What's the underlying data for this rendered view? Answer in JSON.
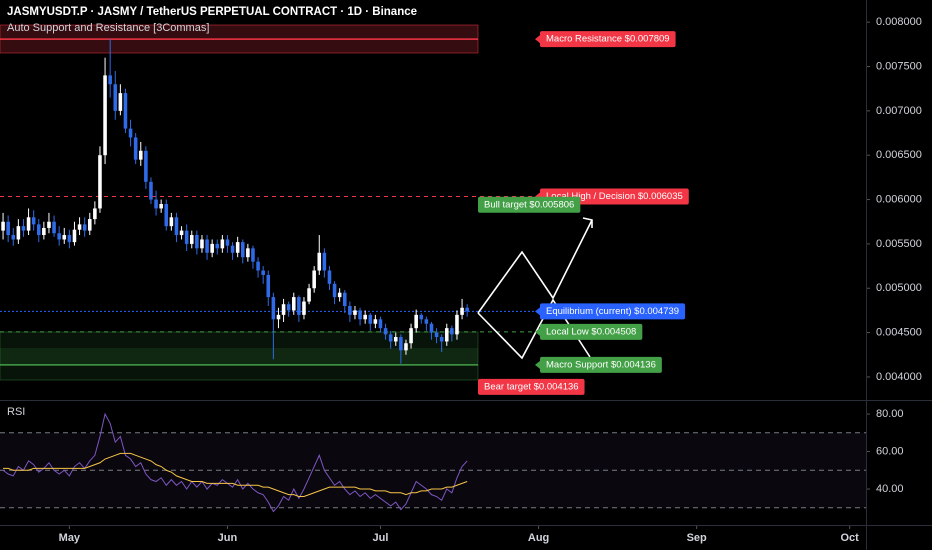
{
  "chart_data": [
    {
      "type": "candlestick",
      "title": "JASMYUSDT.P · JASMY / TetherUS PERPETUAL CONTRACT · 1D · Binance",
      "subtitle": "Auto Support and Resistance [3Commas]",
      "up_color": "#ffffff",
      "down_color": "#2f6be8",
      "x": [
        0,
        1,
        2,
        3,
        4,
        5,
        6,
        7,
        8,
        9,
        10,
        11,
        12,
        13,
        14,
        15,
        16,
        17,
        18,
        19,
        20,
        21,
        22,
        23,
        24,
        25,
        26,
        27,
        28,
        29,
        30,
        31,
        32,
        33,
        34,
        35,
        36,
        37,
        38,
        39,
        40,
        41,
        42,
        43,
        44,
        45,
        46,
        47,
        48,
        49,
        50,
        51,
        52,
        53,
        54,
        55,
        56,
        57,
        58,
        59,
        60,
        61,
        62,
        63,
        64,
        65,
        66,
        67,
        68,
        69,
        70,
        71,
        72,
        73,
        74,
        75,
        76,
        77,
        78,
        79,
        80,
        81,
        82,
        83,
        84,
        85,
        86,
        87,
        88,
        89,
        90,
        91
      ],
      "open": [
        0.00565,
        0.00575,
        0.0056,
        0.00555,
        0.0057,
        0.00565,
        0.0058,
        0.00572,
        0.0056,
        0.00568,
        0.00575,
        0.00562,
        0.00555,
        0.0056,
        0.00552,
        0.00566,
        0.00572,
        0.00565,
        0.00578,
        0.0059,
        0.0065,
        0.0074,
        0.0073,
        0.007,
        0.0072,
        0.0068,
        0.0067,
        0.00645,
        0.00655,
        0.0062,
        0.006,
        0.0059,
        0.00595,
        0.0057,
        0.0058,
        0.0056,
        0.00565,
        0.0055,
        0.0056,
        0.00545,
        0.00555,
        0.0054,
        0.0055,
        0.00545,
        0.00555,
        0.00548,
        0.0054,
        0.00552,
        0.00535,
        0.00545,
        0.0053,
        0.0052,
        0.00515,
        0.0049,
        0.00465,
        0.0047,
        0.00482,
        0.00475,
        0.0049,
        0.0047,
        0.00485,
        0.005,
        0.0052,
        0.0054,
        0.0052,
        0.00505,
        0.0049,
        0.00495,
        0.0048,
        0.0047,
        0.00475,
        0.00465,
        0.0047,
        0.0046,
        0.00465,
        0.00455,
        0.00448,
        0.0044,
        0.00445,
        0.0043,
        0.00438,
        0.00455,
        0.0047,
        0.00465,
        0.0046,
        0.0045,
        0.00445,
        0.0044,
        0.00455,
        0.00448,
        0.0047,
        0.00478
      ],
      "high": [
        0.00585,
        0.00582,
        0.00568,
        0.00578,
        0.00578,
        0.0059,
        0.00588,
        0.00578,
        0.00575,
        0.00585,
        0.00582,
        0.0057,
        0.00568,
        0.00566,
        0.00575,
        0.0058,
        0.0058,
        0.00585,
        0.00598,
        0.0066,
        0.0076,
        0.00781,
        0.00745,
        0.0073,
        0.00725,
        0.0069,
        0.00675,
        0.00665,
        0.0066,
        0.00625,
        0.0061,
        0.006,
        0.006,
        0.00585,
        0.00585,
        0.0057,
        0.00572,
        0.00565,
        0.00565,
        0.0056,
        0.0056,
        0.00555,
        0.00555,
        0.0056,
        0.0056,
        0.00552,
        0.00558,
        0.00555,
        0.0055,
        0.00548,
        0.00535,
        0.00525,
        0.0052,
        0.00495,
        0.00478,
        0.00488,
        0.00485,
        0.00495,
        0.00492,
        0.0049,
        0.00505,
        0.00525,
        0.0056,
        0.00545,
        0.00525,
        0.00508,
        0.005,
        0.00498,
        0.00485,
        0.0048,
        0.00478,
        0.00475,
        0.00472,
        0.0047,
        0.00468,
        0.0046,
        0.00452,
        0.0045,
        0.00448,
        0.00442,
        0.0046,
        0.00476,
        0.00472,
        0.00468,
        0.00462,
        0.00455,
        0.00448,
        0.0046,
        0.00458,
        0.00475,
        0.00488,
        0.00482
      ],
      "low": [
        0.00555,
        0.00552,
        0.00548,
        0.0055,
        0.00558,
        0.0056,
        0.00565,
        0.00552,
        0.00555,
        0.00562,
        0.00558,
        0.00548,
        0.0055,
        0.00545,
        0.00548,
        0.0056,
        0.00558,
        0.0056,
        0.00572,
        0.00585,
        0.0064,
        0.00715,
        0.0069,
        0.00695,
        0.00675,
        0.0066,
        0.0064,
        0.00638,
        0.00612,
        0.00595,
        0.00582,
        0.00585,
        0.00565,
        0.00565,
        0.00552,
        0.00555,
        0.00542,
        0.00545,
        0.00538,
        0.0054,
        0.00532,
        0.00535,
        0.00538,
        0.0054,
        0.0054,
        0.00532,
        0.00535,
        0.00528,
        0.0053,
        0.00522,
        0.00512,
        0.00505,
        0.0048,
        0.0042,
        0.00455,
        0.00462,
        0.00468,
        0.0047,
        0.00462,
        0.00465,
        0.00482,
        0.00495,
        0.00515,
        0.00512,
        0.00498,
        0.00482,
        0.00485,
        0.00472,
        0.00462,
        0.00465,
        0.00458,
        0.0046,
        0.00452,
        0.00455,
        0.0045,
        0.00442,
        0.00432,
        0.00435,
        0.00415,
        0.00425,
        0.00432,
        0.0045,
        0.0046,
        0.00452,
        0.00442,
        0.00438,
        0.00428,
        0.00435,
        0.0044,
        0.00442,
        0.00465,
        0.00468
      ],
      "close": [
        0.00575,
        0.0056,
        0.00555,
        0.0057,
        0.00565,
        0.0058,
        0.00572,
        0.0056,
        0.00568,
        0.00575,
        0.00562,
        0.00555,
        0.0056,
        0.00552,
        0.00566,
        0.00572,
        0.00565,
        0.00578,
        0.0059,
        0.0065,
        0.0074,
        0.0073,
        0.007,
        0.0072,
        0.0068,
        0.0067,
        0.00645,
        0.00655,
        0.0062,
        0.006,
        0.0059,
        0.00595,
        0.0057,
        0.0058,
        0.0056,
        0.00565,
        0.0055,
        0.0056,
        0.00545,
        0.00555,
        0.0054,
        0.0055,
        0.00545,
        0.00555,
        0.00548,
        0.0054,
        0.00552,
        0.00535,
        0.00545,
        0.0053,
        0.0052,
        0.00515,
        0.0049,
        0.00465,
        0.0047,
        0.00482,
        0.00475,
        0.0049,
        0.0047,
        0.00485,
        0.005,
        0.0052,
        0.0054,
        0.0052,
        0.00505,
        0.0049,
        0.00495,
        0.0048,
        0.0047,
        0.00475,
        0.00465,
        0.0047,
        0.0046,
        0.00465,
        0.00455,
        0.00448,
        0.0044,
        0.00445,
        0.0043,
        0.00438,
        0.00455,
        0.0047,
        0.00465,
        0.0046,
        0.0045,
        0.00445,
        0.0044,
        0.00455,
        0.00448,
        0.0047,
        0.00478,
        0.004739
      ],
      "xlim": [
        -0.6,
        169.2
      ],
      "xticks": [
        {
          "value": 13,
          "label": "May"
        },
        {
          "value": 44,
          "label": "Jun"
        },
        {
          "value": 74,
          "label": "Jul"
        },
        {
          "value": 105,
          "label": "Aug"
        },
        {
          "value": 136,
          "label": "Sep"
        },
        {
          "value": 166,
          "label": "Oct"
        }
      ],
      "ylim": [
        0.00374,
        0.00825
      ],
      "yticks": [
        {
          "value": 0.004,
          "label": "0.004000"
        },
        {
          "value": 0.0045,
          "label": "0.004500"
        },
        {
          "value": 0.005,
          "label": "0.005000"
        },
        {
          "value": 0.0055,
          "label": "0.005500"
        },
        {
          "value": 0.006,
          "label": "0.006000"
        },
        {
          "value": 0.0065,
          "label": "0.006500"
        },
        {
          "value": 0.007,
          "label": "0.007000"
        },
        {
          "value": 0.0075,
          "label": "0.007500"
        },
        {
          "value": 0.008,
          "label": "0.008000"
        }
      ],
      "levels": [
        {
          "label": "Macro Resistance $0.007809",
          "value": 0.007809,
          "color": "#f23645",
          "style": "solid"
        },
        {
          "label": "Local High / Decision $0.006035",
          "value": 0.006035,
          "color": "#f23645",
          "style": "dashed"
        },
        {
          "label": "Bull target $0.005806",
          "value": 0.005806,
          "color": "#43a047",
          "style": "none"
        },
        {
          "label": "Equilibrium (current) $0.004739",
          "value": 0.004739,
          "color": "#2962ff",
          "style": "dotted"
        },
        {
          "label": "Local Low $0.004508",
          "value": 0.004508,
          "color": "#43a047",
          "style": "dashed"
        },
        {
          "label": "Macro Support $0.004136",
          "value": 0.004136,
          "color": "#43a047",
          "style": "solid"
        },
        {
          "label": "Bear target $0.004136",
          "value": 0.004136,
          "color": "#f23645",
          "style": "none"
        }
      ]
    },
    {
      "type": "line",
      "title": "RSI",
      "series": [
        {
          "color": "#7e57c2",
          "values": [
            50,
            48,
            47,
            52,
            50,
            55,
            53,
            49,
            51,
            54,
            50,
            48,
            50,
            47,
            52,
            54,
            51,
            55,
            58,
            68,
            80,
            75,
            65,
            68,
            58,
            56,
            52,
            54,
            48,
            45,
            44,
            46,
            42,
            45,
            42,
            44,
            40,
            44,
            41,
            44,
            40,
            43,
            42,
            45,
            43,
            41,
            45,
            40,
            43,
            40,
            38,
            37,
            33,
            28,
            31,
            36,
            34,
            40,
            35,
            40,
            46,
            52,
            58,
            50,
            46,
            42,
            44,
            40,
            37,
            39,
            36,
            38,
            35,
            37,
            35,
            33,
            31,
            33,
            29,
            32,
            38,
            44,
            42,
            40,
            37,
            36,
            34,
            40,
            38,
            46,
            52,
            55
          ]
        },
        {
          "color": "#f7c548",
          "values": [
            51,
            51,
            50,
            50,
            50,
            50,
            51,
            51,
            51,
            51,
            51,
            51,
            51,
            51,
            51,
            51,
            51,
            52,
            53,
            54,
            56,
            57,
            58,
            59,
            59,
            59,
            58,
            57,
            56,
            55,
            53,
            52,
            50,
            49,
            47,
            46,
            45,
            44,
            44,
            44,
            43,
            43,
            43,
            43,
            43,
            43,
            42,
            42,
            42,
            42,
            42,
            41,
            41,
            40,
            39,
            38,
            37,
            37,
            36,
            36,
            37,
            38,
            39,
            40,
            41,
            41,
            41,
            41,
            41,
            41,
            40,
            40,
            40,
            39,
            39,
            39,
            38,
            38,
            38,
            37,
            38,
            38,
            39,
            39,
            40,
            40,
            40,
            41,
            41,
            42,
            43,
            44
          ]
        }
      ],
      "ylim": [
        20.8,
        87.5
      ],
      "yticks": [
        {
          "value": 40,
          "label": "40.00"
        },
        {
          "value": 60,
          "label": "60.00"
        },
        {
          "value": 80,
          "label": "80.00"
        }
      ],
      "band_levels": [
        70,
        50,
        30
      ]
    }
  ]
}
